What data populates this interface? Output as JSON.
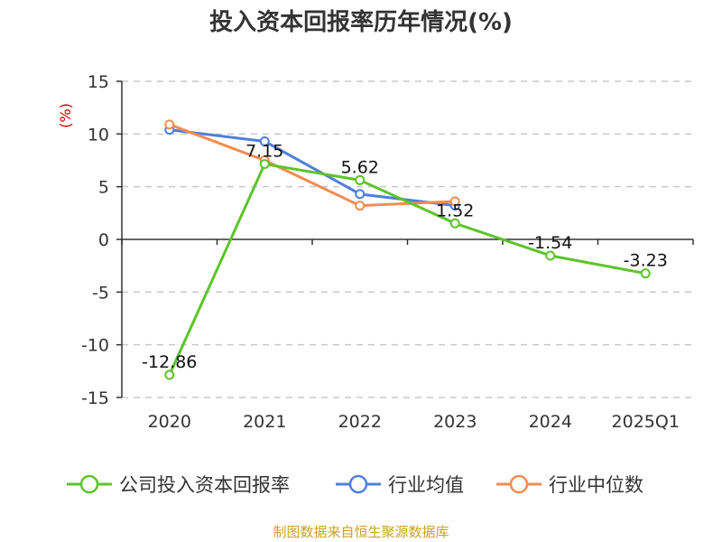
{
  "title": "投入资本回报率历年情况(%)",
  "source_note": "制图数据来自恒生聚源数据库",
  "chart_data": {
    "type": "line",
    "title": "投入资本回报率历年情况(%)",
    "ylabel": "(%)",
    "xlabel": "",
    "categories": [
      "2020",
      "2021",
      "2022",
      "2023",
      "2024",
      "2025Q1"
    ],
    "ylim": [
      -15,
      15
    ],
    "yticks": [
      15,
      10,
      5,
      0,
      -5,
      -10,
      -15
    ],
    "grid": true,
    "legend_position": "bottom",
    "series": [
      {
        "name": "公司投入资本回报率",
        "color": "#5dc42a",
        "values": [
          -12.86,
          7.15,
          5.62,
          1.52,
          -1.54,
          -3.23
        ],
        "labels": [
          "-12.86",
          "7.15",
          "5.62",
          "1.52",
          "-1.54",
          "-3.23"
        ]
      },
      {
        "name": "行业均值",
        "color": "#4f7fdb",
        "values": [
          10.4,
          9.3,
          4.3,
          3.2,
          null,
          null
        ]
      },
      {
        "name": "行业中位数",
        "color": "#f28c52",
        "values": [
          10.9,
          7.5,
          3.2,
          3.6,
          null,
          null
        ]
      }
    ]
  }
}
